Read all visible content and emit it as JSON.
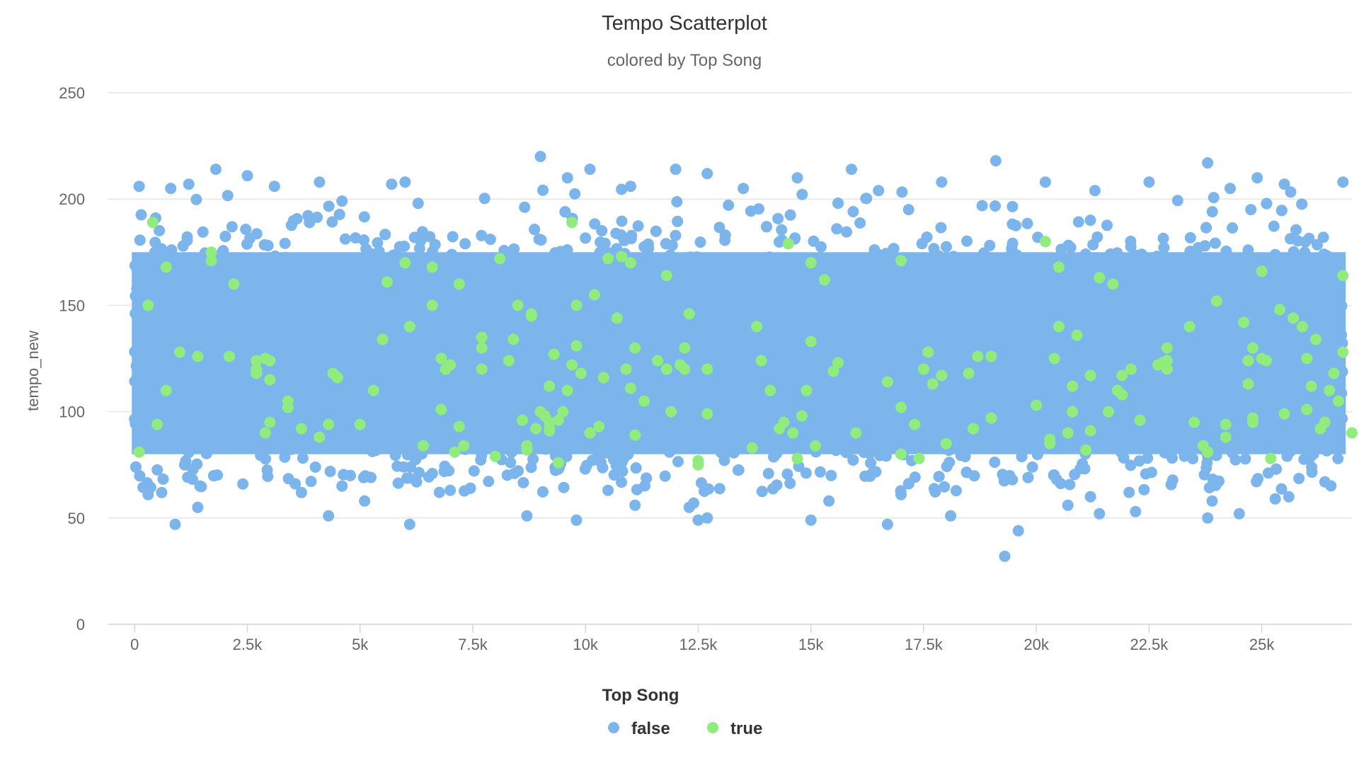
{
  "chart_data": {
    "type": "scatter",
    "title": "Tempo Scatterplot",
    "subtitle": "colored by Top Song",
    "xlabel": "",
    "ylabel": "tempo_new",
    "xlim": [
      -600,
      27000
    ],
    "ylim": [
      0,
      250
    ],
    "x_ticks": [
      0,
      2500,
      5000,
      7500,
      10000,
      12500,
      15000,
      17500,
      20000,
      22500,
      25000
    ],
    "x_tick_labels": [
      "0",
      "2.5k",
      "5k",
      "7.5k",
      "10k",
      "12.5k",
      "15k",
      "17.5k",
      "20k",
      "22.5k",
      "25k"
    ],
    "y_ticks": [
      0,
      50,
      100,
      150,
      200,
      250
    ],
    "y_tick_labels": [
      "0",
      "50",
      "100",
      "150",
      "200",
      "250"
    ],
    "grid": true,
    "legend_placement": "bottom-center",
    "legend_title": "Top Song",
    "series": [
      {
        "name": "false",
        "color": "#7cb5ec",
        "note_density": "dense band",
        "band": {
          "x": [
            0,
            26800
          ],
          "y": [
            75,
            180
          ],
          "count": 26000
        },
        "outliers": [
          [
            900,
            47
          ],
          [
            6100,
            47
          ],
          [
            16700,
            47
          ],
          [
            4300,
            51
          ],
          [
            18100,
            51
          ],
          [
            8700,
            51
          ],
          [
            9800,
            49
          ],
          [
            12500,
            49
          ],
          [
            12700,
            50
          ],
          [
            15000,
            49
          ],
          [
            23800,
            50
          ],
          [
            19300,
            32
          ],
          [
            19600,
            44
          ],
          [
            1400,
            55
          ],
          [
            11100,
            56
          ],
          [
            12300,
            55
          ],
          [
            12400,
            57
          ],
          [
            20700,
            56
          ],
          [
            21400,
            52
          ],
          [
            22200,
            53
          ],
          [
            24500,
            52
          ],
          [
            25300,
            59
          ],
          [
            25600,
            60
          ],
          [
            5100,
            58
          ],
          [
            15400,
            58
          ],
          [
            23900,
            58
          ],
          [
            300,
            61
          ],
          [
            600,
            62
          ],
          [
            3700,
            62
          ],
          [
            7000,
            63
          ],
          [
            17000,
            61
          ],
          [
            2400,
            66
          ],
          [
            4600,
            65
          ],
          [
            10500,
            63
          ],
          [
            21200,
            60
          ],
          [
            26400,
            67
          ],
          [
            9000,
            220
          ],
          [
            19100,
            218
          ],
          [
            23800,
            217
          ],
          [
            1800,
            214
          ],
          [
            10100,
            214
          ],
          [
            12000,
            214
          ],
          [
            15900,
            214
          ],
          [
            2500,
            211
          ],
          [
            12700,
            212
          ],
          [
            14700,
            210
          ],
          [
            24900,
            210
          ],
          [
            9600,
            210
          ],
          [
            26800,
            208
          ],
          [
            4100,
            208
          ],
          [
            6000,
            208
          ],
          [
            17900,
            208
          ],
          [
            20200,
            208
          ],
          [
            22500,
            208
          ],
          [
            100,
            206
          ],
          [
            800,
            205
          ],
          [
            1200,
            207
          ],
          [
            3100,
            206
          ],
          [
            5700,
            207
          ],
          [
            11000,
            206
          ],
          [
            13500,
            205
          ],
          [
            16500,
            204
          ],
          [
            21300,
            204
          ],
          [
            24300,
            205
          ],
          [
            25500,
            207
          ]
        ]
      },
      {
        "name": "true",
        "color": "#90ed7d",
        "points": [
          [
            100,
            81
          ],
          [
            300,
            150
          ],
          [
            400,
            189
          ],
          [
            500,
            94
          ],
          [
            700,
            168
          ],
          [
            700,
            110
          ],
          [
            1000,
            128
          ],
          [
            1400,
            126
          ],
          [
            1700,
            175
          ],
          [
            1700,
            171
          ],
          [
            2100,
            126
          ],
          [
            2200,
            160
          ],
          [
            2700,
            124
          ],
          [
            2700,
            118
          ],
          [
            2700,
            120
          ],
          [
            2900,
            125
          ],
          [
            2900,
            90
          ],
          [
            3000,
            124
          ],
          [
            3000,
            95
          ],
          [
            3000,
            115
          ],
          [
            3400,
            105
          ],
          [
            3400,
            102
          ],
          [
            3700,
            92
          ],
          [
            4100,
            88
          ],
          [
            4300,
            94
          ],
          [
            4400,
            118
          ],
          [
            4500,
            116
          ],
          [
            5000,
            94
          ],
          [
            5300,
            110
          ],
          [
            5500,
            134
          ],
          [
            5600,
            161
          ],
          [
            6000,
            170
          ],
          [
            6100,
            140
          ],
          [
            6400,
            84
          ],
          [
            6600,
            168
          ],
          [
            6600,
            150
          ],
          [
            6800,
            125
          ],
          [
            6800,
            101
          ],
          [
            6900,
            120
          ],
          [
            7000,
            122
          ],
          [
            7100,
            81
          ],
          [
            7200,
            93
          ],
          [
            7300,
            84
          ],
          [
            7200,
            160
          ],
          [
            7700,
            135
          ],
          [
            7700,
            130
          ],
          [
            7700,
            120
          ],
          [
            8000,
            79
          ],
          [
            8100,
            172
          ],
          [
            8300,
            124
          ],
          [
            8400,
            134
          ],
          [
            8500,
            150
          ],
          [
            8600,
            96
          ],
          [
            8700,
            84
          ],
          [
            8700,
            82
          ],
          [
            8800,
            145
          ],
          [
            8800,
            146
          ],
          [
            8900,
            92
          ],
          [
            9000,
            100
          ],
          [
            9100,
            98
          ],
          [
            9200,
            92
          ],
          [
            9200,
            91
          ],
          [
            9200,
            95
          ],
          [
            9200,
            112
          ],
          [
            9300,
            127
          ],
          [
            9400,
            96
          ],
          [
            9400,
            76
          ],
          [
            9500,
            100
          ],
          [
            9600,
            110
          ],
          [
            9700,
            122
          ],
          [
            9700,
            189
          ],
          [
            9800,
            150
          ],
          [
            9800,
            131
          ],
          [
            9900,
            118
          ],
          [
            10100,
            90
          ],
          [
            10200,
            155
          ],
          [
            10300,
            93
          ],
          [
            10400,
            116
          ],
          [
            10500,
            172
          ],
          [
            10700,
            144
          ],
          [
            10800,
            173
          ],
          [
            10900,
            120
          ],
          [
            11000,
            170
          ],
          [
            11000,
            111
          ],
          [
            11100,
            89
          ],
          [
            11100,
            130
          ],
          [
            11300,
            105
          ],
          [
            11600,
            124
          ],
          [
            11800,
            120
          ],
          [
            11800,
            164
          ],
          [
            11900,
            100
          ],
          [
            12100,
            122
          ],
          [
            12200,
            130
          ],
          [
            12200,
            120
          ],
          [
            12300,
            146
          ],
          [
            12500,
            77
          ],
          [
            12500,
            75
          ],
          [
            12700,
            120
          ],
          [
            12700,
            99
          ],
          [
            13700,
            83
          ],
          [
            13800,
            140
          ],
          [
            13900,
            124
          ],
          [
            14100,
            110
          ],
          [
            14300,
            92
          ],
          [
            14400,
            95
          ],
          [
            14500,
            179
          ],
          [
            14600,
            90
          ],
          [
            14700,
            78
          ],
          [
            14800,
            98
          ],
          [
            14900,
            110
          ],
          [
            15000,
            170
          ],
          [
            15000,
            133
          ],
          [
            15100,
            84
          ],
          [
            15300,
            162
          ],
          [
            15500,
            119
          ],
          [
            15600,
            123
          ],
          [
            16000,
            90
          ],
          [
            16700,
            114
          ],
          [
            17000,
            171
          ],
          [
            17000,
            102
          ],
          [
            17000,
            80
          ],
          [
            17300,
            94
          ],
          [
            17400,
            78
          ],
          [
            17500,
            120
          ],
          [
            17600,
            128
          ],
          [
            17700,
            113
          ],
          [
            17900,
            117
          ],
          [
            18000,
            85
          ],
          [
            18500,
            118
          ],
          [
            18600,
            92
          ],
          [
            18700,
            126
          ],
          [
            19000,
            126
          ],
          [
            19000,
            97
          ],
          [
            20000,
            103
          ],
          [
            20200,
            180
          ],
          [
            20300,
            87
          ],
          [
            20300,
            85
          ],
          [
            20400,
            125
          ],
          [
            20500,
            140
          ],
          [
            20500,
            168
          ],
          [
            20700,
            90
          ],
          [
            20800,
            112
          ],
          [
            20800,
            100
          ],
          [
            20900,
            136
          ],
          [
            21100,
            82
          ],
          [
            21200,
            117
          ],
          [
            21200,
            91
          ],
          [
            21400,
            163
          ],
          [
            21600,
            100
          ],
          [
            21700,
            160
          ],
          [
            21800,
            110
          ],
          [
            21900,
            117
          ],
          [
            21900,
            108
          ],
          [
            22100,
            120
          ],
          [
            22300,
            96
          ],
          [
            22700,
            122
          ],
          [
            22800,
            123
          ],
          [
            22900,
            120
          ],
          [
            22900,
            124
          ],
          [
            22900,
            130
          ],
          [
            23400,
            140
          ],
          [
            23500,
            95
          ],
          [
            23700,
            84
          ],
          [
            23800,
            81
          ],
          [
            24000,
            152
          ],
          [
            24200,
            94
          ],
          [
            24200,
            88
          ],
          [
            24600,
            142
          ],
          [
            24700,
            124
          ],
          [
            24700,
            113
          ],
          [
            24800,
            97
          ],
          [
            24800,
            95
          ],
          [
            24800,
            130
          ],
          [
            25000,
            166
          ],
          [
            25000,
            125
          ],
          [
            25100,
            124
          ],
          [
            25200,
            78
          ],
          [
            25400,
            148
          ],
          [
            25500,
            99
          ],
          [
            25700,
            144
          ],
          [
            25900,
            140
          ],
          [
            26000,
            125
          ],
          [
            26000,
            101
          ],
          [
            26100,
            112
          ],
          [
            26200,
            134
          ],
          [
            26300,
            92
          ],
          [
            26400,
            95
          ],
          [
            26500,
            110
          ],
          [
            26600,
            118
          ],
          [
            26700,
            105
          ],
          [
            26800,
            128
          ],
          [
            26800,
            164
          ],
          [
            27000,
            90
          ]
        ]
      }
    ]
  }
}
